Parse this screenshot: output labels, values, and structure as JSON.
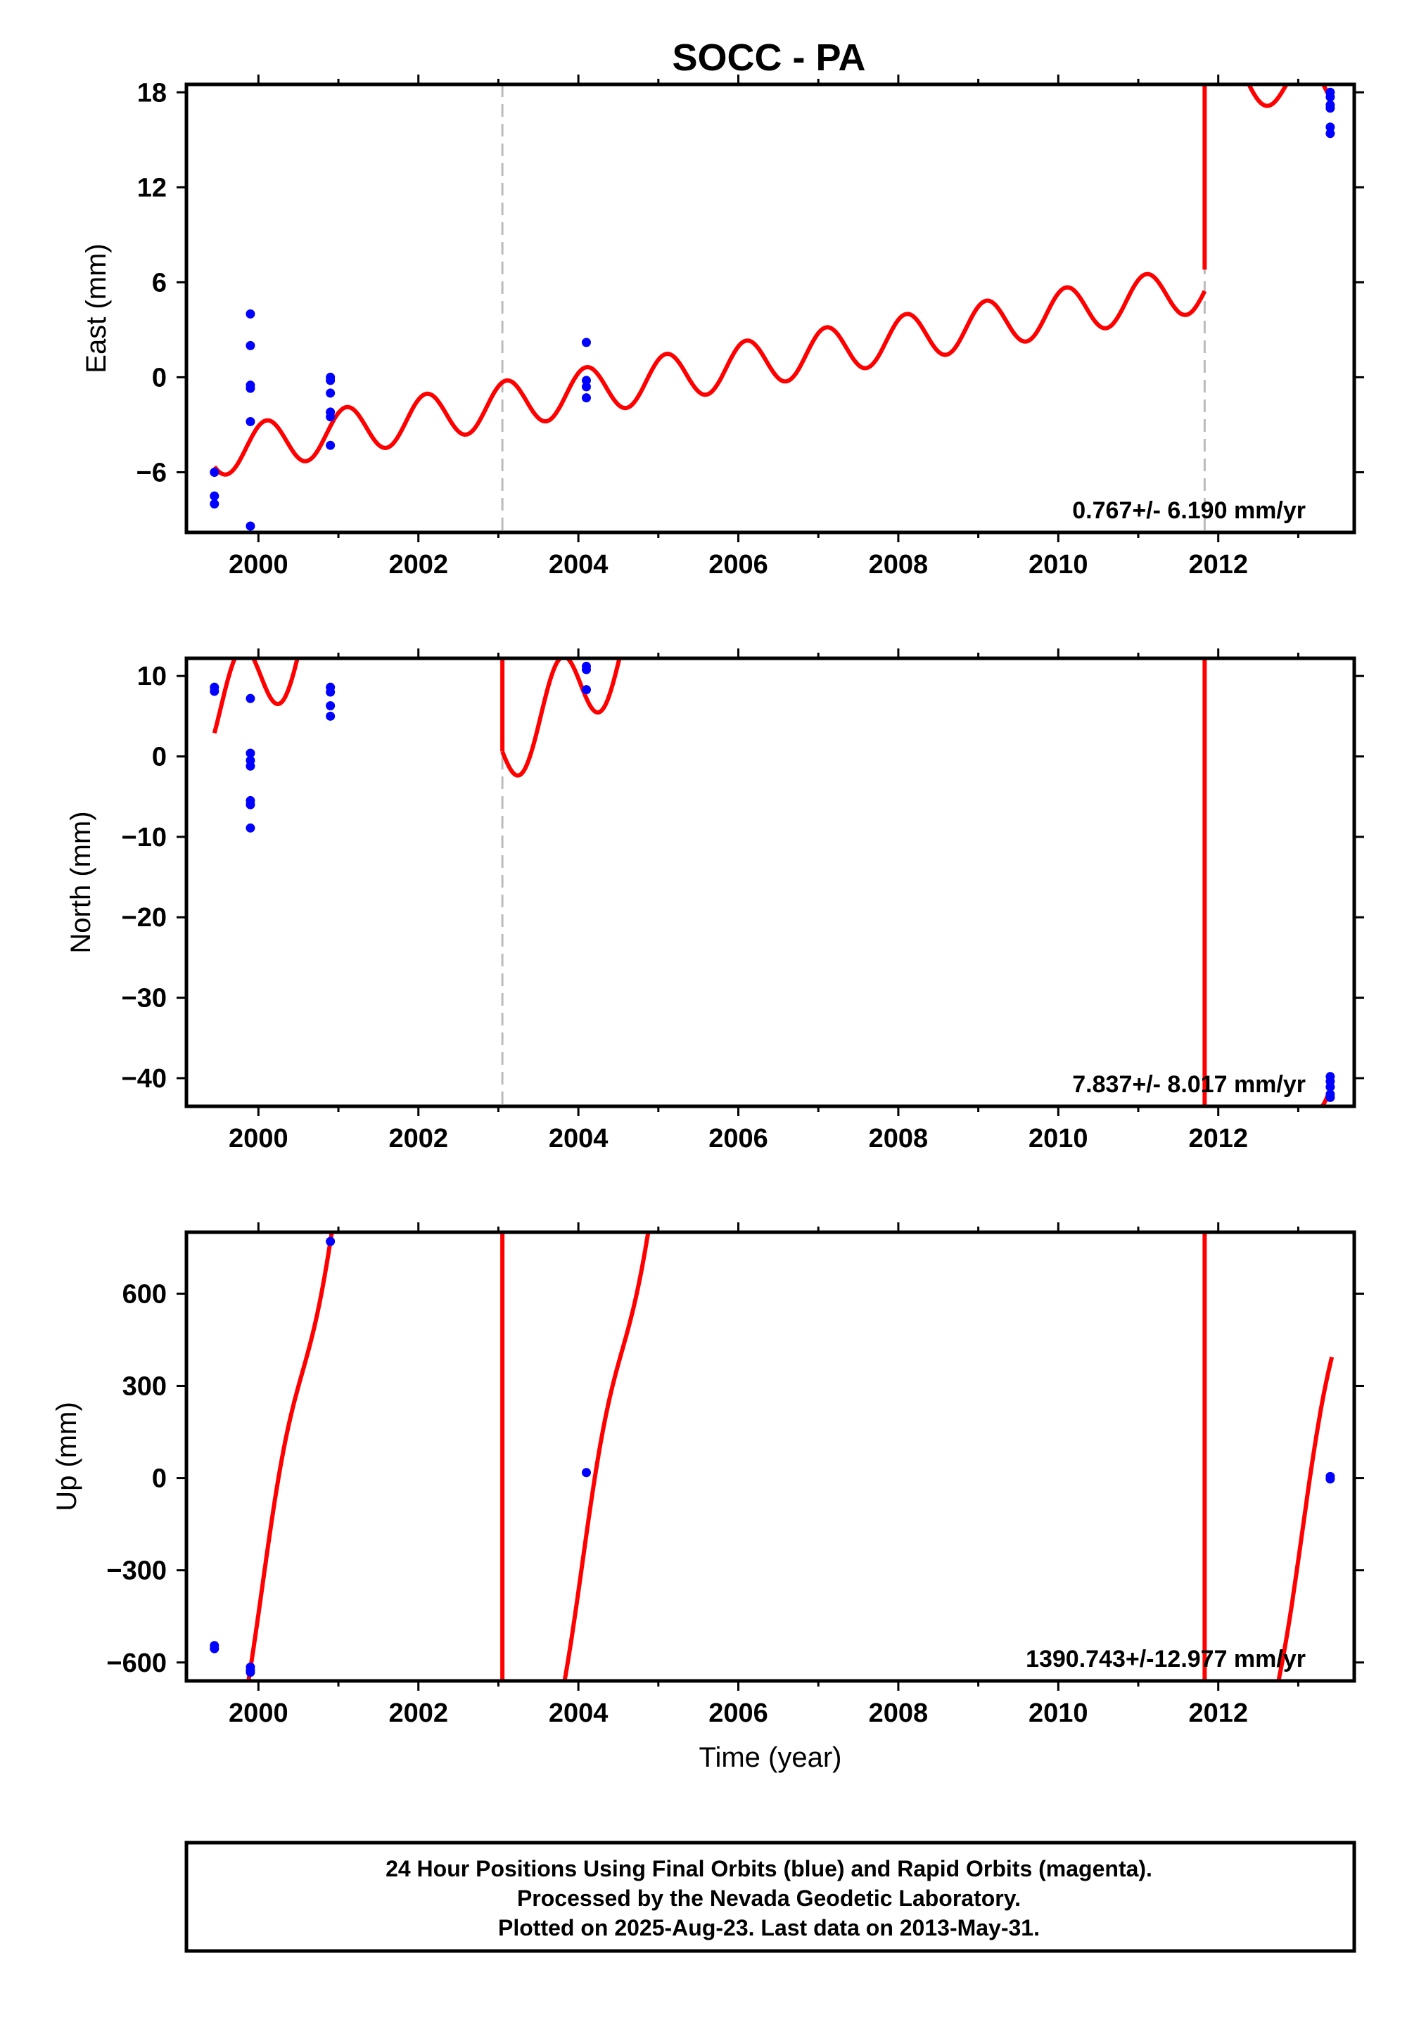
{
  "chart_data": {
    "type": "scatter",
    "title": "SOCC - PA",
    "xlabel": "Time (year)",
    "xlim": [
      1999.1,
      2013.7
    ],
    "xticks": [
      2000,
      2002,
      2004,
      2006,
      2008,
      2010,
      2012
    ],
    "xtick_labels": [
      "2000",
      "2002",
      "2004",
      "2006",
      "2008",
      "2010",
      "2012"
    ],
    "dashed_verticals": [
      2003.05,
      2011.83
    ],
    "colors": {
      "points": "#0000ff",
      "model": "#ff0000",
      "dashed": "#bbbbbb"
    },
    "panels": [
      {
        "name": "east",
        "ylabel": "East (mm)",
        "ylim": [
          -9.8,
          18.5
        ],
        "yticks": [
          -6,
          0,
          6,
          12,
          18
        ],
        "ytick_labels": [
          "−6",
          "0",
          "6",
          "12",
          "18"
        ],
        "rate": "0.767+/- 6.190 mm/yr",
        "show_dashed": [
          true,
          true
        ],
        "points": [
          [
            1999.45,
            -6.0
          ],
          [
            1999.45,
            -7.5
          ],
          [
            1999.45,
            -8.0
          ],
          [
            1999.9,
            4.0
          ],
          [
            1999.9,
            2.0
          ],
          [
            1999.9,
            -0.5
          ],
          [
            1999.9,
            -0.7
          ],
          [
            1999.9,
            -2.8
          ],
          [
            1999.9,
            -9.4
          ],
          [
            2000.9,
            0.0
          ],
          [
            2000.9,
            -0.2
          ],
          [
            2000.9,
            -1.0
          ],
          [
            2000.9,
            -2.2
          ],
          [
            2000.9,
            -2.5
          ],
          [
            2000.9,
            -4.3
          ],
          [
            2004.1,
            2.2
          ],
          [
            2004.1,
            -0.2
          ],
          [
            2004.1,
            -0.6
          ],
          [
            2004.1,
            -1.3
          ],
          [
            2013.4,
            18.0
          ],
          [
            2013.4,
            17.7
          ],
          [
            2013.4,
            17.2
          ],
          [
            2013.4,
            17.0
          ],
          [
            2013.4,
            15.8
          ],
          [
            2013.4,
            15.4
          ]
        ],
        "model_segments": [
          {
            "x0": 1999.45,
            "x1": 2011.83,
            "base": -5.65,
            "slope": 0.84,
            "amp": 1.5,
            "phase": 0.85,
            "base_year": 1999.45
          },
          {
            "x0": 2011.83,
            "x1": 2013.42,
            "base": 19.0,
            "slope": -0.7,
            "amp": 1.5,
            "phase": 0.85,
            "base_year": 2011.83
          }
        ],
        "model_verticals": [
          [
            2011.83,
            6.8,
            18.5
          ]
        ]
      },
      {
        "name": "north",
        "ylabel": "North (mm)",
        "ylim": [
          -43.5,
          12.2
        ],
        "yticks": [
          -40,
          -30,
          -20,
          -10,
          0,
          10
        ],
        "ytick_labels": [
          "−40",
          "−30",
          "−20",
          "−10",
          "0",
          "10"
        ],
        "rate": "7.837+/- 8.017 mm/yr",
        "show_dashed": [
          true,
          false
        ],
        "points": [
          [
            1999.45,
            8.6
          ],
          [
            1999.45,
            8.1
          ],
          [
            1999.9,
            7.2
          ],
          [
            1999.9,
            0.4
          ],
          [
            1999.9,
            -0.5
          ],
          [
            1999.9,
            -1.2
          ],
          [
            1999.9,
            -5.5
          ],
          [
            1999.9,
            -6.0
          ],
          [
            1999.9,
            -8.9
          ],
          [
            2000.9,
            8.6
          ],
          [
            2000.9,
            8.0
          ],
          [
            2000.9,
            6.3
          ],
          [
            2000.9,
            5.0
          ],
          [
            2004.1,
            11.2
          ],
          [
            2004.1,
            10.8
          ],
          [
            2004.1,
            8.3
          ],
          [
            2013.4,
            -39.8
          ],
          [
            2013.4,
            -40.4
          ],
          [
            2013.4,
            -41.1
          ],
          [
            2013.4,
            -42.0
          ],
          [
            2013.4,
            -42.4
          ]
        ],
        "model_segments": [
          {
            "x0": 1999.45,
            "x1": 2003.05,
            "base": 2.9,
            "slope": 7.84,
            "amp": 5.3,
            "phase": 0.53,
            "base_year": 1999.45
          },
          {
            "x0": 2003.05,
            "x1": 2011.83,
            "base": 0.6,
            "slope": 7.84,
            "amp": 5.3,
            "phase": 0.53,
            "base_year": 2003.05
          },
          {
            "x0": 2013.25,
            "x1": 2013.42,
            "base": -43.8,
            "slope": 7.84,
            "amp": 5.3,
            "phase": 0.53,
            "base_year": 2013.25
          }
        ],
        "model_verticals": [
          [
            2003.05,
            0.6,
            12.2
          ],
          [
            2011.83,
            -43.5,
            12.2
          ]
        ]
      },
      {
        "name": "up",
        "ylabel": "Up (mm)",
        "ylim": [
          -660,
          800
        ],
        "yticks": [
          -600,
          -300,
          0,
          300,
          600
        ],
        "ytick_labels": [
          "−600",
          "−300",
          "0",
          "300",
          "600"
        ],
        "rate": "1390.743+/-12.977 mm/yr",
        "show_dashed": [
          false,
          false
        ],
        "points": [
          [
            1999.45,
            -545
          ],
          [
            1999.45,
            -555
          ],
          [
            1999.9,
            -615
          ],
          [
            1999.9,
            -625
          ],
          [
            1999.9,
            -632
          ],
          [
            2000.9,
            770
          ],
          [
            2004.1,
            18
          ],
          [
            2013.4,
            5
          ],
          [
            2013.4,
            -3
          ]
        ],
        "model_segments": [
          {
            "x0": 1999.85,
            "x1": 2000.95,
            "base": -700,
            "slope": 1390.7,
            "amp": 75,
            "phase": 0.05,
            "base_year": 1999.85
          },
          {
            "x0": 2003.8,
            "x1": 2004.95,
            "base": -700,
            "slope": 1390.7,
            "amp": 75,
            "phase": 0.05,
            "base_year": 2003.8
          },
          {
            "x0": 2012.72,
            "x1": 2013.42,
            "base": -700,
            "slope": 1390.7,
            "amp": 75,
            "phase": 0.05,
            "base_year": 2012.72
          }
        ],
        "model_verticals": [
          [
            2003.05,
            -660,
            800
          ],
          [
            2011.83,
            -660,
            800
          ]
        ]
      }
    ]
  },
  "footer": {
    "line1": "24 Hour Positions Using Final Orbits (blue) and Rapid Orbits (magenta).",
    "line2": "Processed by the Nevada Geodetic Laboratory.",
    "line3": "Plotted on 2025-Aug-23. Last data on 2013-May-31."
  }
}
